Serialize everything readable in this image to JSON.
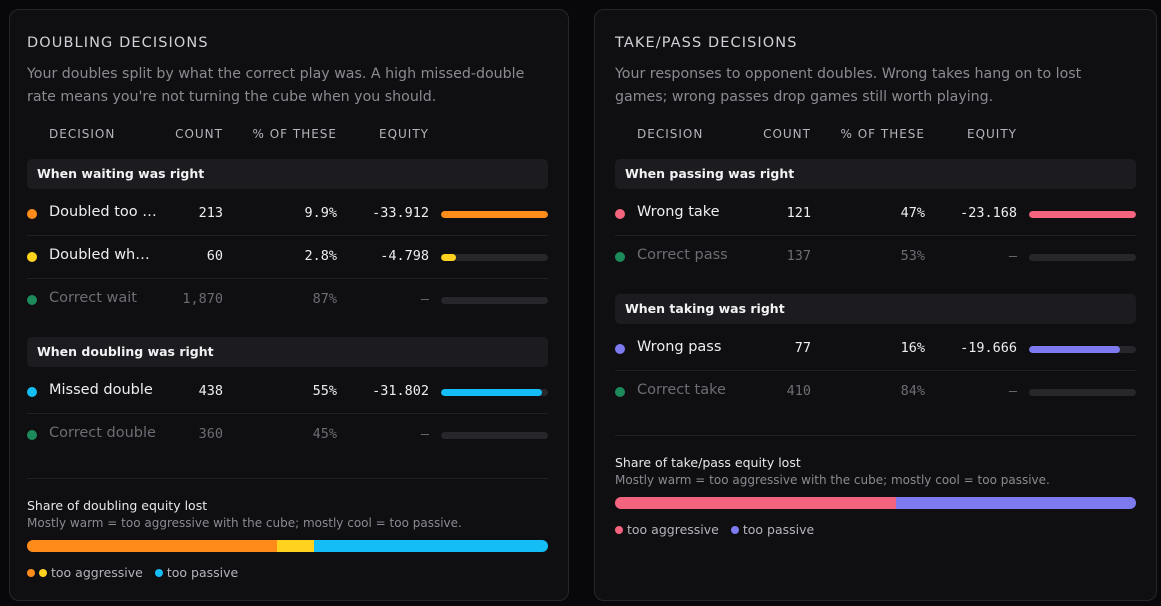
{
  "colors": {
    "orange": "#ff8c1a",
    "yellow": "#ffd21f",
    "cyan": "#14bdf5",
    "green": "#1d8a5a",
    "red": "#f5647e",
    "purple": "#7d7af0",
    "track": "#26262b"
  },
  "headers": {
    "decision": "DECISION",
    "count": "COUNT",
    "pct": "% OF THESE",
    "equity": "EQUITY"
  },
  "doubling": {
    "title": "DOUBLING DECISIONS",
    "description": "Your doubles split by what the correct play was. A high missed-double rate means you're not turning the cube when you should.",
    "group1": "When waiting was right",
    "group2": "When doubling was right",
    "rows": [
      {
        "name": "Doubled too …",
        "count": "213",
        "pct": "9.9%",
        "equity": "-33.912",
        "fill": 1.0,
        "color": "#ff8c1a"
      },
      {
        "name": "Doubled whe…",
        "count": "60",
        "pct": "2.8%",
        "equity": "-4.798",
        "fill": 0.14,
        "color": "#ffd21f"
      },
      {
        "name": "Correct wait",
        "count": "1,870",
        "pct": "87%",
        "equity": "–",
        "fill": 0,
        "color": "#1d8a5a"
      },
      {
        "name": "Missed double",
        "count": "438",
        "pct": "55%",
        "equity": "-31.802",
        "fill": 0.94,
        "color": "#14bdf5"
      },
      {
        "name": "Correct double",
        "count": "360",
        "pct": "45%",
        "equity": "–",
        "fill": 0,
        "color": "#1d8a5a"
      }
    ],
    "share_title": "Share of doubling equity lost",
    "share_sub": "Mostly warm = too aggressive with the cube; mostly cool = too passive.",
    "share_segments": [
      {
        "fraction": 0.48,
        "color": "#ff8c1a"
      },
      {
        "fraction": 0.07,
        "color": "#ffd21f"
      },
      {
        "fraction": 0.45,
        "color": "#14bdf5"
      }
    ],
    "legend_aggressive": "too aggressive",
    "legend_passive": "too passive"
  },
  "takepass": {
    "title": "TAKE/PASS DECISIONS",
    "description": "Your responses to opponent doubles. Wrong takes hang on to lost games; wrong passes drop games still worth playing.",
    "group1": "When passing was right",
    "group2": "When taking was right",
    "rows": [
      {
        "name": "Wrong take",
        "count": "121",
        "pct": "47%",
        "equity": "-23.168",
        "fill": 1.0,
        "color": "#f5647e"
      },
      {
        "name": "Correct pass",
        "count": "137",
        "pct": "53%",
        "equity": "–",
        "fill": 0,
        "color": "#1d8a5a"
      },
      {
        "name": "Wrong pass",
        "count": "77",
        "pct": "16%",
        "equity": "-19.666",
        "fill": 0.85,
        "color": "#7d7af0"
      },
      {
        "name": "Correct take",
        "count": "410",
        "pct": "84%",
        "equity": "–",
        "fill": 0,
        "color": "#1d8a5a"
      }
    ],
    "share_title": "Share of take/pass equity lost",
    "share_sub": "Mostly warm = too aggressive with the cube; mostly cool = too passive.",
    "share_segments": [
      {
        "fraction": 0.54,
        "color": "#f5647e"
      },
      {
        "fraction": 0.46,
        "color": "#7d7af0"
      }
    ],
    "legend_aggressive": "too aggressive",
    "legend_passive": "too passive"
  }
}
